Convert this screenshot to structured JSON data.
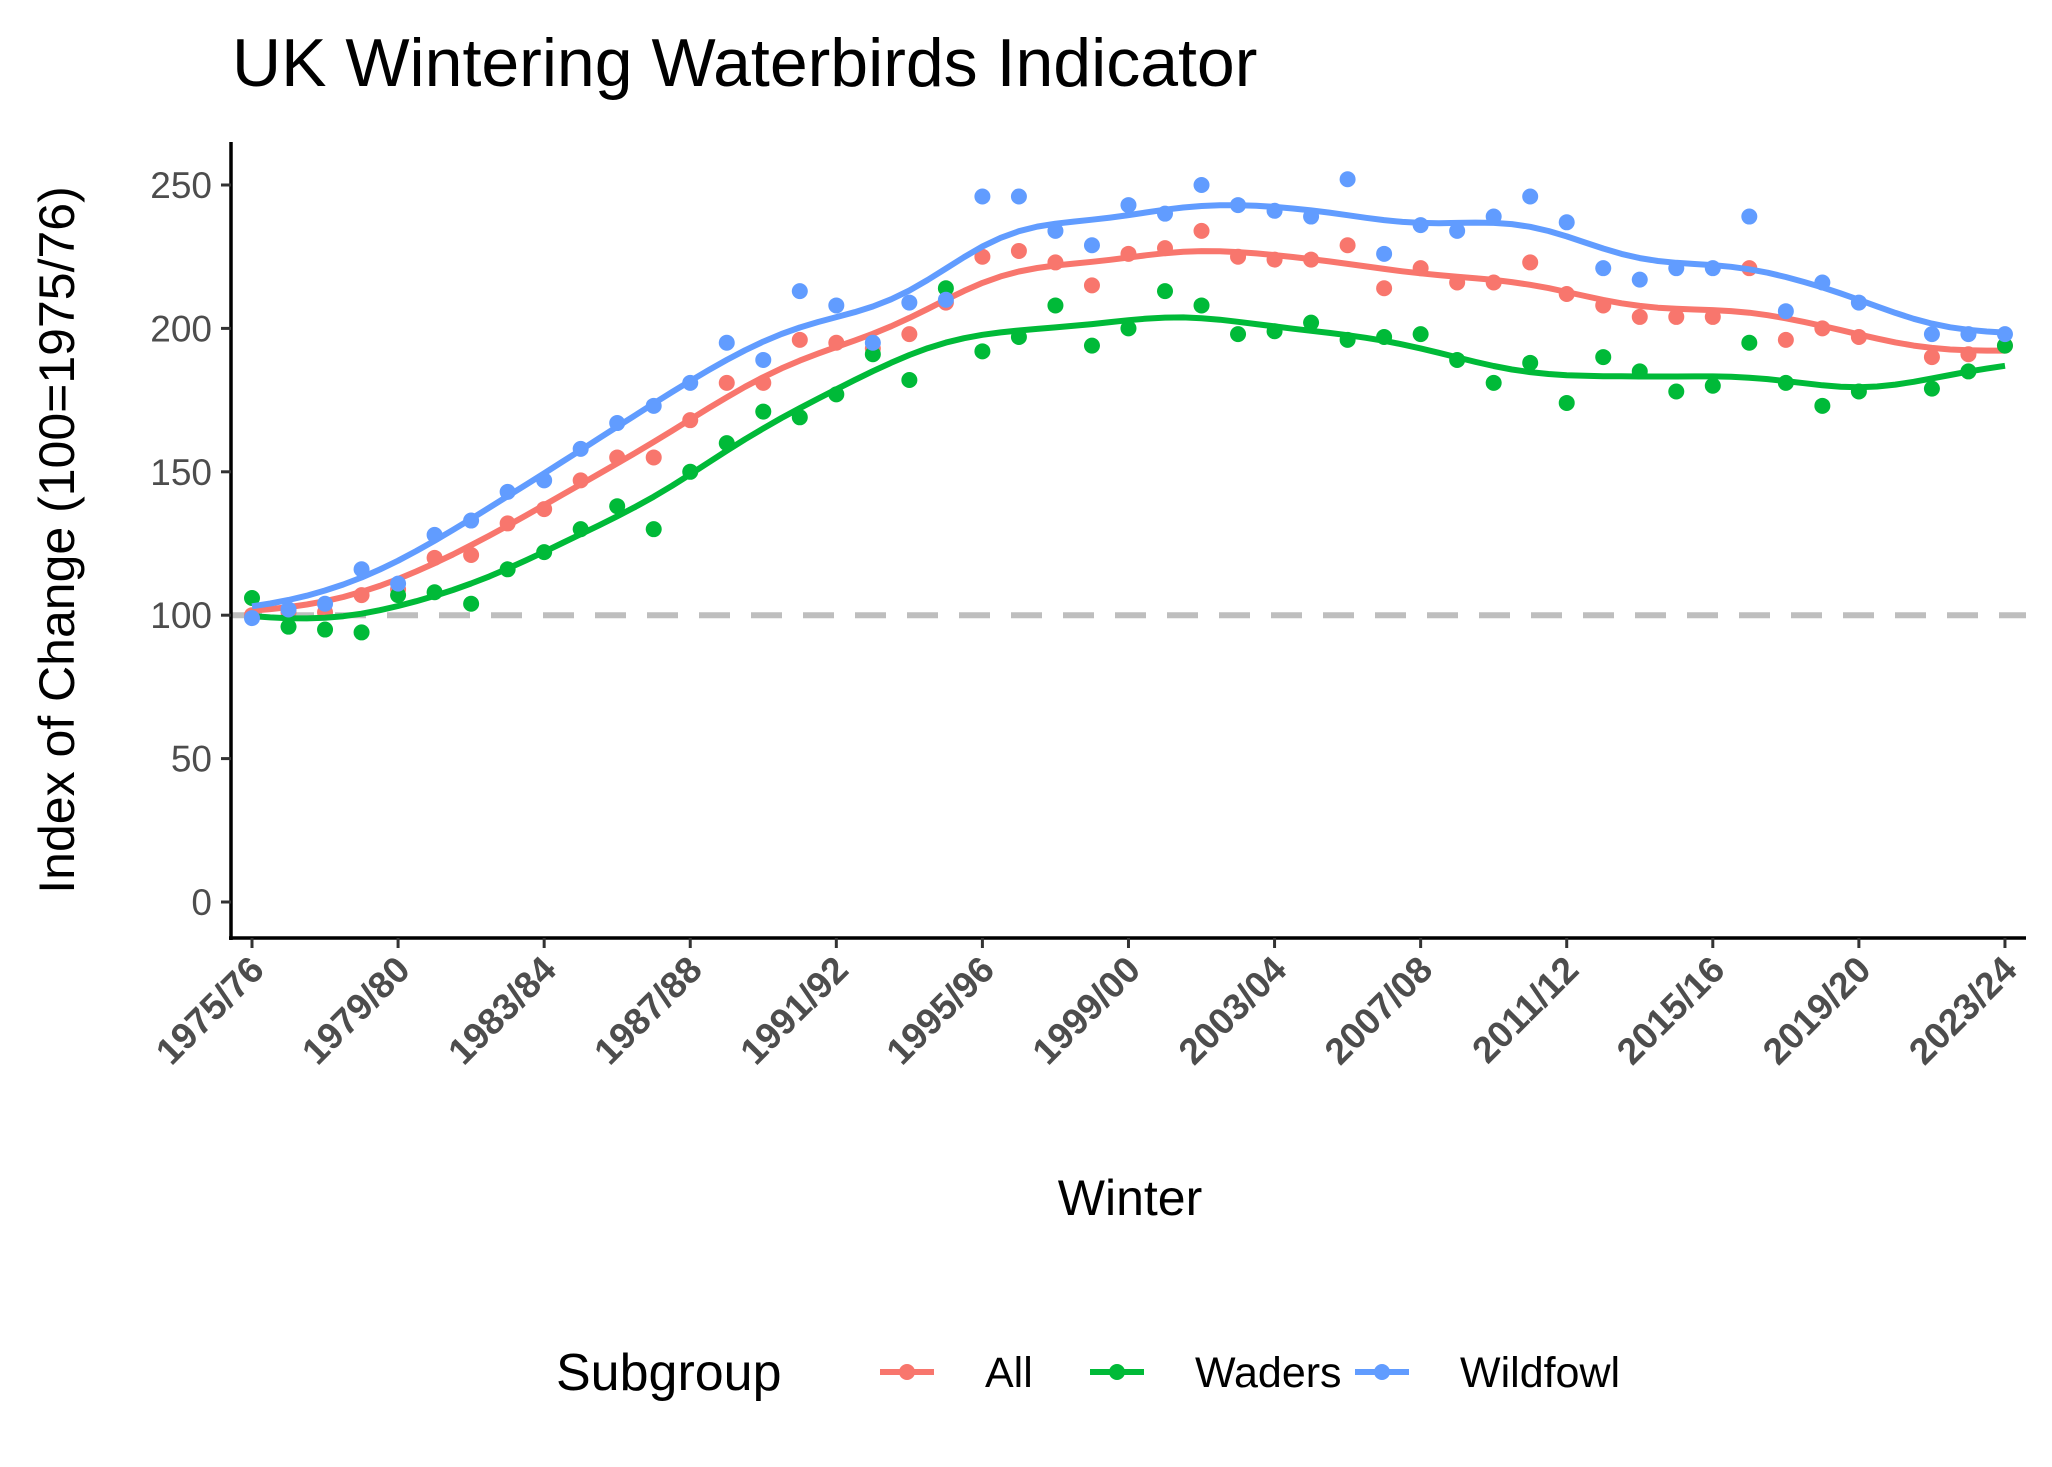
{
  "chart_data": {
    "type": "scatter",
    "title": "UK Wintering Waterbirds Indicator",
    "xlabel": "Winter",
    "ylabel": "Index of Change (100=1975/76)",
    "ylim": [
      -10,
      265
    ],
    "yticks": [
      0,
      50,
      100,
      150,
      200,
      250
    ],
    "xtick_labels": [
      "1975/76",
      "1979/80",
      "1983/84",
      "1987/88",
      "1991/92",
      "1995/96",
      "1999/00",
      "2003/04",
      "2007/08",
      "2011/12",
      "2015/16",
      "2019/20",
      "2023/24"
    ],
    "reference_line": {
      "y": 100,
      "style": "dashed",
      "color": "#BEBEBE"
    },
    "grid": false,
    "smoothed_trend_lines": true,
    "legend": {
      "title": "Subgroup",
      "placement": "bottom"
    },
    "winters": [
      "1975/76",
      "1976/77",
      "1977/78",
      "1978/79",
      "1979/80",
      "1980/81",
      "1981/82",
      "1982/83",
      "1983/84",
      "1984/85",
      "1985/86",
      "1986/87",
      "1987/88",
      "1988/89",
      "1989/90",
      "1990/91",
      "1991/92",
      "1992/93",
      "1993/94",
      "1994/95",
      "1995/96",
      "1996/97",
      "1997/98",
      "1998/99",
      "1999/00",
      "2000/01",
      "2001/02",
      "2002/03",
      "2003/04",
      "2004/05",
      "2005/06",
      "2006/07",
      "2007/08",
      "2008/09",
      "2009/10",
      "2010/11",
      "2011/12",
      "2012/13",
      "2013/14",
      "2014/15",
      "2015/16",
      "2016/17",
      "2017/18",
      "2018/19",
      "2019/20",
      "2020/21",
      "2021/22",
      "2022/23",
      "2023/24"
    ],
    "series": [
      {
        "name": "All",
        "color": "#F8766D",
        "values": [
          100,
          101,
          101,
          107,
          109,
          120,
          121,
          132,
          137,
          147,
          155,
          155,
          168,
          181,
          181,
          196,
          195,
          193,
          198,
          209,
          225,
          227,
          223,
          215,
          226,
          228,
          234,
          225,
          224,
          224,
          229,
          214,
          221,
          216,
          216,
          223,
          212,
          208,
          204,
          204,
          204,
          221,
          196,
          200,
          197,
          null,
          190,
          191,
          194
        ]
      },
      {
        "name": "Waders",
        "color": "#00BA38",
        "values": [
          106,
          96,
          95,
          94,
          107,
          108,
          104,
          116,
          122,
          130,
          138,
          130,
          150,
          160,
          171,
          169,
          177,
          191,
          182,
          214,
          192,
          197,
          208,
          194,
          200,
          213,
          208,
          198,
          199,
          202,
          196,
          197,
          198,
          189,
          181,
          188,
          174,
          190,
          185,
          178,
          180,
          195,
          181,
          173,
          178,
          null,
          179,
          185,
          194
        ]
      },
      {
        "name": "Wildfowl",
        "color": "#619CFF",
        "values": [
          99,
          102,
          104,
          116,
          111,
          128,
          133,
          143,
          147,
          158,
          167,
          173,
          181,
          195,
          189,
          213,
          208,
          195,
          209,
          210,
          246,
          246,
          234,
          229,
          243,
          240,
          250,
          243,
          241,
          239,
          252,
          226,
          236,
          234,
          239,
          246,
          237,
          221,
          217,
          221,
          221,
          239,
          206,
          216,
          209,
          null,
          198,
          198,
          198
        ]
      }
    ]
  }
}
